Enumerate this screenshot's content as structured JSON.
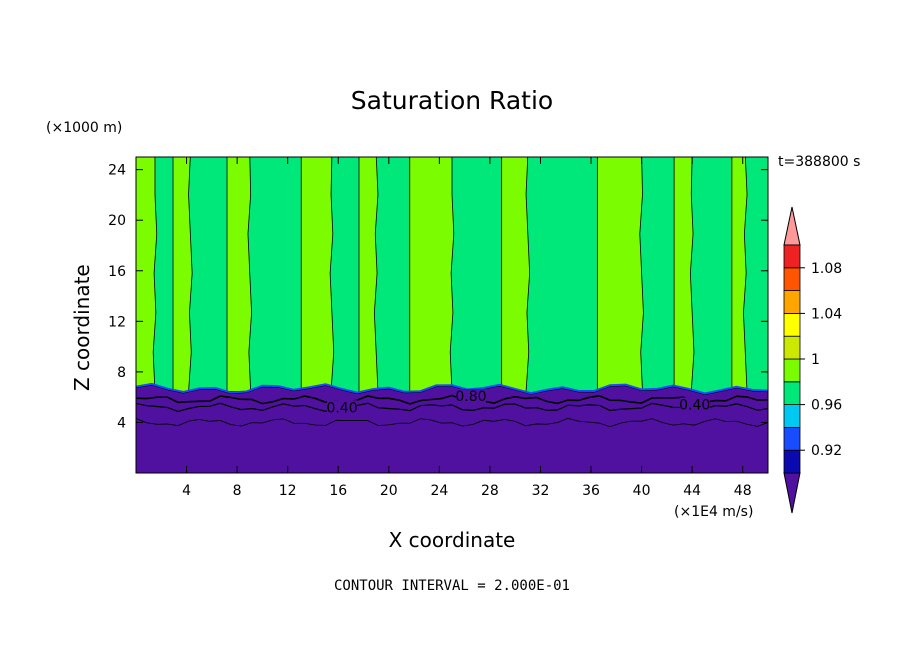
{
  "chart_data": {
    "type": "heatmap",
    "title": "Saturation Ratio",
    "xlabel": "X coordinate",
    "ylabel": "Z coordinate",
    "x_unit": "(×1E4 m/s)",
    "z_unit": "(×1000 m)",
    "time_label": "t=388800 s",
    "footer": "CONTOUR INTERVAL = 2.000E-01",
    "xlim": [
      0,
      50
    ],
    "ylim": [
      0,
      25
    ],
    "x_ticks": [
      4,
      8,
      12,
      16,
      20,
      24,
      28,
      32,
      36,
      40,
      44,
      48
    ],
    "y_ticks": [
      4,
      8,
      12,
      16,
      20,
      24
    ],
    "colorbar": {
      "labels": [
        "1.08",
        "1.04",
        "1",
        "0.96",
        "0.92"
      ],
      "levels": [
        0.9,
        0.92,
        0.94,
        0.96,
        0.98,
        1.0,
        1.02,
        1.04,
        1.06,
        1.08,
        1.1
      ],
      "colors": [
        "#5010a0",
        "#0a0ab0",
        "#1a4cff",
        "#00c8f0",
        "#00e87a",
        "#7cfc00",
        "#cce800",
        "#ffff00",
        "#ffa500",
        "#ff5500",
        "#ee2222",
        "#ff9999"
      ],
      "extend": "both"
    },
    "contour_labels": [
      {
        "text": "0.40",
        "x": 16.3,
        "z": 5.2
      },
      {
        "text": "0.80",
        "x": 26.5,
        "z": 6.1
      },
      {
        "text": "0.40",
        "x": 44.2,
        "z": 5.4
      }
    ],
    "regions": {
      "dry_layer_top_z": 6.6,
      "lowest_contour_z": 4.0,
      "supersaturated_band_x": [
        [
          0,
          1.5
        ],
        [
          3,
          4.3
        ],
        [
          7.2,
          9
        ],
        [
          13,
          15.5
        ],
        [
          17.5,
          19
        ],
        [
          21.8,
          25
        ],
        [
          29,
          31
        ],
        [
          36.5,
          40
        ],
        [
          42.5,
          44
        ],
        [
          47,
          48.2
        ]
      ]
    }
  }
}
